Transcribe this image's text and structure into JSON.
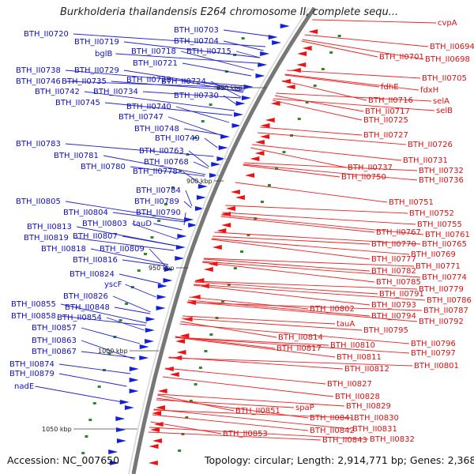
{
  "title": "Burkholderia thailandensis E264 chromosome II, complete sequ...",
  "accession_label": "Accession:",
  "accession": "NC_007650",
  "topology_label": "Topology:",
  "topology": "circular",
  "length_label": "Length:",
  "length": "2,914,771 bp",
  "genes_label": "Genes:",
  "genes": "2,368",
  "colors": {
    "left_labels": "#1010c0",
    "right_labels": "#dd1010",
    "backbone": "#777777"
  },
  "kbp_ticks": [
    "850 kbp",
    "900 kbp",
    "950 kbp",
    "1000 kbp",
    "1050 kbp"
  ],
  "left_labels": [
    "BTH_II0703",
    "BTH_II0704",
    "BTH_II0720",
    "BTH_II0719",
    "BTH_II0718",
    "BTH_II0715",
    "bglB",
    "BTH_II0721",
    "BTH_II0738",
    "BTH_II0729",
    "BTH_II0746",
    "BTH_II0735",
    "BTH_II0728",
    "BTH_II0724",
    "BTH_II0742",
    "BTH_II0734",
    "BTH_II0730",
    "BTH_II0745",
    "BTH_II0740",
    "BTH_II0747",
    "BTH_II0748",
    "BTH_II0749",
    "BTH_II0783",
    "BTH_II0763",
    "BTH_II0781",
    "BTH_II0768",
    "BTH_II0780",
    "BTH_II0778",
    "BTH_II0784",
    "BTH_II0805",
    "BTH_II0789",
    "BTH_II0804",
    "BTH_II0790",
    "BTH_II0803",
    "BTH_II0813",
    "tauD",
    "BTH_II0807",
    "BTH_II0819",
    "BTH_II0818",
    "BTH_II0809",
    "BTH_II0816",
    "BTH_II0824",
    "yscF",
    "BTH_II0826",
    "BTH_II0855",
    "BTH_II0848",
    "BTH_II0858",
    "BTH_II0854",
    "BTH_II0857",
    "BTH_II0863",
    "BTH_II0867",
    "BTH_II0874",
    "BTH_II0879",
    "nadE"
  ],
  "right_labels": [
    "cvpA",
    "BTH_II0694",
    "BTH_II0701",
    "BTH_II0698",
    "BTH_II0705",
    "fdhE",
    "fdxH",
    "BTH_II0716",
    "selA",
    "selB",
    "BTH_II0717",
    "BTH_II0725",
    "BTH_II0727",
    "BTH_II0726",
    "BTH_II0731",
    "BTH_II0737",
    "BTH_II0732",
    "BTH_II0750",
    "BTH_II0736",
    "BTH_II0751",
    "BTH_II0752",
    "BTH_II0755",
    "BTH_II0767",
    "BTH_II0761",
    "BTH_II0770",
    "BTH_II0765",
    "BTH_II0769",
    "BTH_II0777",
    "BTH_II0771",
    "BTH_II0782",
    "BTH_II0774",
    "BTH_II0785",
    "BTH_II0779",
    "BTH_II0791",
    "BTH_II0786",
    "BTH_II0793",
    "BTH_II0787",
    "BTH_II0802",
    "BTH_II0794",
    "BTH_II0792",
    "tauA",
    "BTH_II0795",
    "BTH_II0814",
    "BTH_II0796",
    "BTH_II0810",
    "BTH_II0817",
    "BTH_II0797",
    "BTH_II0811",
    "BTH_II0801",
    "BTH_II0812",
    "BTH_II0827",
    "BTH_II0828",
    "spaP",
    "BTH_II0829",
    "BTH_II0851",
    "BTH_II0841",
    "BTH_II0830",
    "BTH_II0853",
    "BTH_II0842",
    "BTH_II0831",
    "BTH_II0843",
    "BTH_II0832"
  ]
}
